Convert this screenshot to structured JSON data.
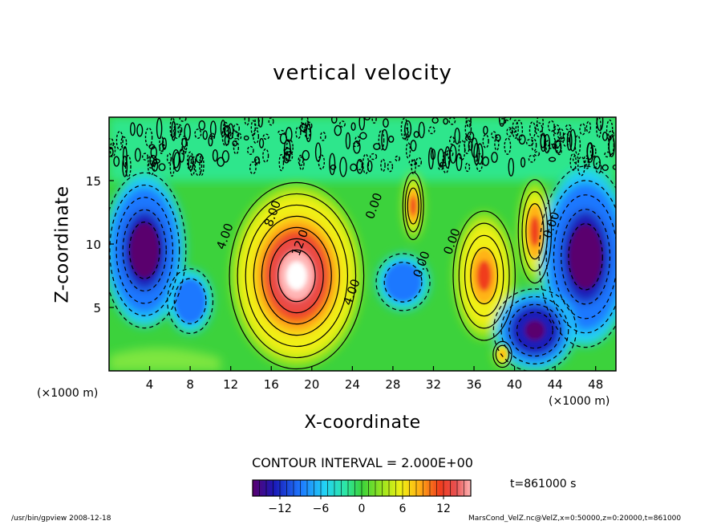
{
  "chart_data": {
    "type": "heatmap",
    "title": "vertical velocity",
    "xlabel": "X-coordinate",
    "ylabel": "Z-coordinate",
    "x_unit_label": "(×1000 m)",
    "x_unit_label_right": "(×1000 m)",
    "xlim": [
      0,
      50
    ],
    "ylim": [
      0,
      20
    ],
    "x_ticks": [
      4,
      8,
      12,
      16,
      20,
      24,
      28,
      32,
      36,
      40,
      44,
      48
    ],
    "y_ticks": [
      5,
      10,
      15
    ],
    "contour_interval_text": "CONTOUR INTERVAL = 2.000E+00",
    "contour_labels": [
      "4.00",
      "8.00",
      "12.0",
      "4.00",
      "0.00",
      "0.00",
      "0.00",
      "0.00"
    ],
    "colorbar": {
      "min": -16,
      "max": 16,
      "ticks": [
        -12,
        -6,
        0,
        6,
        12
      ]
    },
    "time_label": "t=861000 s",
    "features": [
      {
        "x": 18.5,
        "z": 7,
        "value": 16,
        "desc": "strong updraft core"
      },
      {
        "x": 30,
        "z": 12.5,
        "value": 10
      },
      {
        "x": 37,
        "z": 8,
        "value": 10
      },
      {
        "x": 42,
        "z": 11,
        "value": 10
      },
      {
        "x": 38.8,
        "z": 1.2,
        "value": 8
      },
      {
        "x": 4,
        "z": 9,
        "value": -14
      },
      {
        "x": 47,
        "z": 9,
        "value": -14
      },
      {
        "x": 42,
        "z": 3,
        "value": -13
      },
      {
        "x": 8,
        "z": 5.5,
        "value": -10
      },
      {
        "x": 29,
        "z": 7,
        "value": -10
      }
    ]
  },
  "footer": {
    "program": "/usr/bin/gpview   2008-12-18",
    "source": "MarsCond_VelZ.nc@VelZ,x=0:50000,z=0:20000,t=861000"
  }
}
